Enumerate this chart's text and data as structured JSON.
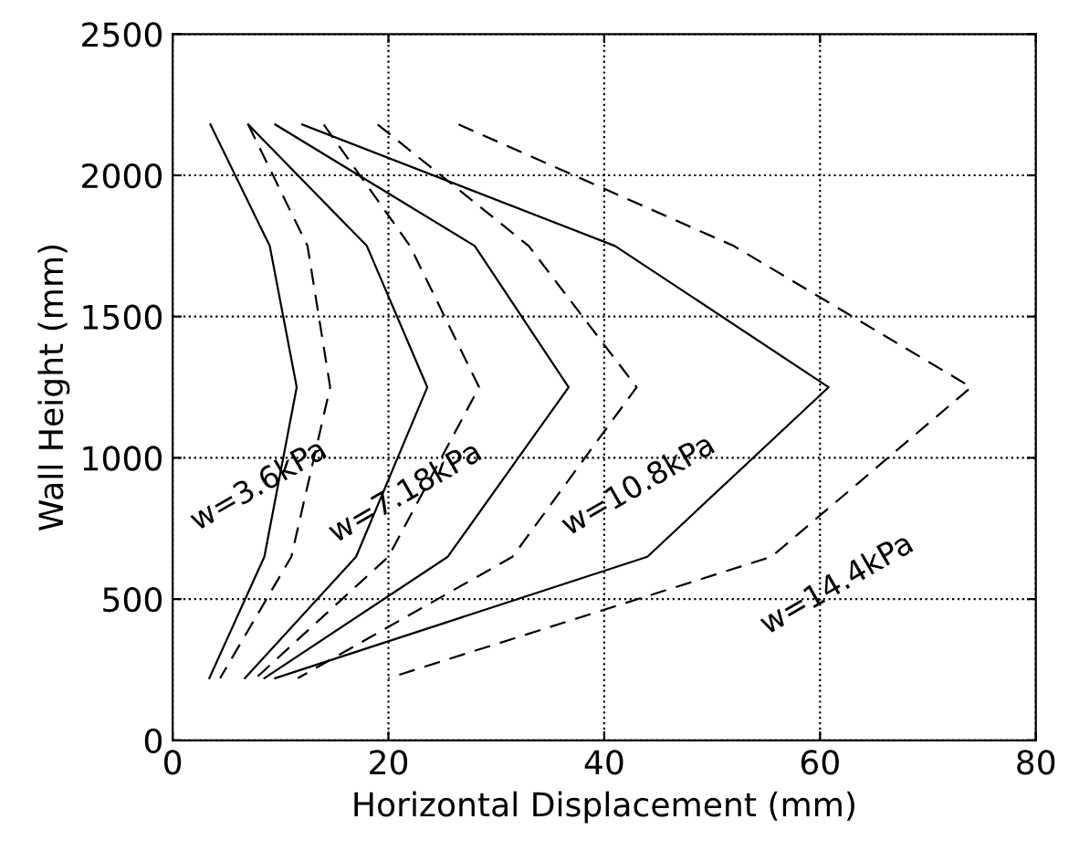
{
  "chart_data": {
    "type": "line",
    "xlabel": "Horizontal Displacement (mm)",
    "ylabel": "Wall Height (mm)",
    "xlim": [
      0,
      80
    ],
    "xticks": [
      0,
      20,
      40,
      60,
      80
    ],
    "ylim": [
      0,
      2500
    ],
    "yticks": [
      0,
      500,
      1000,
      1500,
      2000,
      2500
    ],
    "grid": true,
    "legend": false,
    "marker": "none",
    "series": [
      {
        "color": "#000000",
        "line_style": "solid",
        "x": [
          3.5,
          9,
          11.5,
          8.5,
          3.4
        ],
        "values": [
          2180,
          1750,
          1250,
          650,
          220
        ]
      },
      {
        "color": "#000000",
        "line_style": "dashed",
        "x": [
          7,
          12.5,
          14.6,
          11,
          4.4
        ],
        "values": [
          2180,
          1750,
          1250,
          650,
          220
        ]
      },
      {
        "color": "#000000",
        "line_style": "solid",
        "x": [
          7,
          18,
          23.6,
          17,
          6.7
        ],
        "values": [
          2180,
          1750,
          1250,
          650,
          220
        ]
      },
      {
        "color": "#000000",
        "line_style": "dashed",
        "x": [
          14,
          22,
          28.4,
          20,
          7.7
        ],
        "values": [
          2180,
          1750,
          1250,
          650,
          220
        ]
      },
      {
        "color": "#000000",
        "line_style": "solid",
        "x": [
          9.5,
          28,
          36.7,
          25.5,
          8.5
        ],
        "values": [
          2180,
          1750,
          1250,
          650,
          220
        ]
      },
      {
        "color": "#000000",
        "line_style": "dashed",
        "x": [
          19,
          33,
          43,
          31.5,
          11.6
        ],
        "values": [
          2180,
          1750,
          1250,
          650,
          220
        ]
      },
      {
        "color": "#000000",
        "line_style": "solid",
        "x": [
          12,
          41,
          60.8,
          44,
          9.5
        ],
        "values": [
          2180,
          1750,
          1250,
          650,
          220
        ]
      },
      {
        "color": "#000000",
        "line_style": "dashed",
        "x": [
          26.5,
          52,
          74,
          55.5,
          20
        ],
        "values": [
          2180,
          1750,
          1250,
          650,
          220
        ]
      }
    ],
    "annotations": [
      "w=3.6kPa",
      "w=7.18kPa",
      "w=10.8kPa",
      "w=14.4kPa"
    ]
  }
}
